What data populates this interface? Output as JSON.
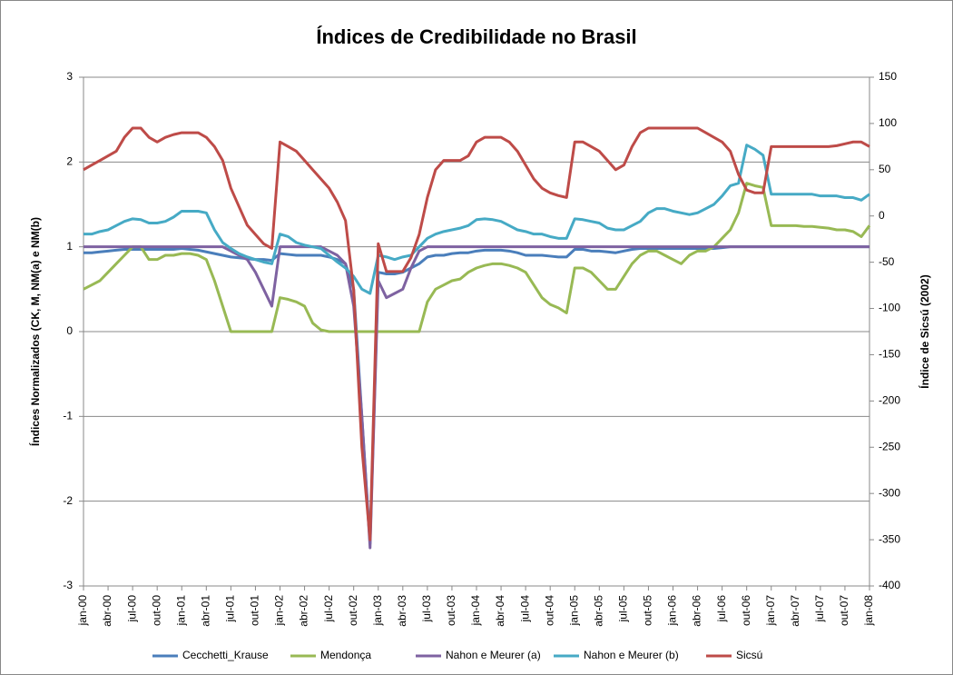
{
  "chart_data": {
    "type": "line",
    "title": "Índices de Credibilidade no Brasil",
    "y_label": "Índices Normalizados (CK, M, NM(a) e NM(b)",
    "y2_label": "Índice de Sicsú  (2002)",
    "categories": [
      "jan-00",
      null,
      null,
      "abr-00",
      null,
      null,
      "jul-00",
      null,
      null,
      "out-00",
      null,
      null,
      "jan-01",
      null,
      null,
      "abr-01",
      null,
      null,
      "jul-01",
      null,
      null,
      "out-01",
      null,
      null,
      "jan-02",
      null,
      null,
      "abr-02",
      null,
      null,
      "jul-02",
      null,
      null,
      "out-02",
      null,
      null,
      "jan-03",
      null,
      null,
      "abr-03",
      null,
      null,
      "jul-03",
      null,
      null,
      "out-03",
      null,
      null,
      "jan-04",
      null,
      null,
      "abr-04",
      null,
      null,
      "jul-04",
      null,
      null,
      "out-04",
      null,
      null,
      "jan-05",
      null,
      null,
      "abr-05",
      null,
      null,
      "jul-05",
      null,
      null,
      "out-05",
      null,
      null,
      "jan-06",
      null,
      null,
      "abr-06",
      null,
      null,
      "jul-06",
      null,
      null,
      "out-06",
      null,
      null,
      "jan-07",
      null,
      null,
      "abr-07",
      null,
      null,
      "jul-07",
      null,
      null,
      "out-07",
      null,
      null,
      "jan-08"
    ],
    "ylim": [
      -3,
      3
    ],
    "yticks": [
      -3,
      -2,
      -1,
      0,
      1,
      2,
      3
    ],
    "y2lim": [
      -400,
      150
    ],
    "y2ticks": [
      -400,
      -350,
      -300,
      -250,
      -200,
      -150,
      -100,
      -50,
      0,
      50,
      100,
      150
    ],
    "grid": true,
    "legend": "bottom",
    "series": [
      {
        "name": "Cecchetti_Krause",
        "color": "#4a7ebb",
        "values": [
          0.93,
          0.93,
          0.94,
          0.95,
          0.96,
          0.97,
          0.97,
          0.97,
          0.97,
          0.97,
          0.97,
          0.97,
          0.98,
          0.97,
          0.96,
          0.94,
          0.92,
          0.9,
          0.88,
          0.87,
          0.86,
          0.85,
          0.85,
          0.84,
          0.92,
          0.91,
          0.9,
          0.9,
          0.9,
          0.9,
          0.88,
          0.85,
          0.8,
          0.5,
          -1.0,
          -2.5,
          0.7,
          0.68,
          0.68,
          0.7,
          0.75,
          0.8,
          0.88,
          0.9,
          0.9,
          0.92,
          0.93,
          0.93,
          0.95,
          0.96,
          0.96,
          0.96,
          0.95,
          0.93,
          0.9,
          0.9,
          0.9,
          0.89,
          0.88,
          0.88,
          0.97,
          0.97,
          0.95,
          0.95,
          0.94,
          0.93,
          0.95,
          0.97,
          0.98,
          0.98,
          0.98,
          0.98,
          0.98,
          0.98,
          0.98,
          0.98,
          0.98,
          0.98,
          0.99,
          1.0,
          1.0,
          1.0,
          1.0,
          1.0,
          1.0,
          1.0,
          1.0,
          1.0,
          1.0,
          1.0,
          1.0,
          1.0,
          1.0,
          1.0,
          1.0,
          1.0,
          1.0
        ]
      },
      {
        "name": "Mendonça",
        "color": "#98b954",
        "values": [
          0.5,
          0.55,
          0.6,
          0.7,
          0.8,
          0.9,
          1.0,
          1.0,
          0.85,
          0.85,
          0.9,
          0.9,
          0.92,
          0.92,
          0.9,
          0.85,
          0.6,
          0.3,
          0,
          0,
          0,
          0,
          0,
          0,
          0.4,
          0.38,
          0.35,
          0.3,
          0.1,
          0.02,
          0,
          0,
          0,
          0,
          0,
          0,
          0,
          0,
          0,
          0,
          0,
          0,
          0.35,
          0.5,
          0.55,
          0.6,
          0.62,
          0.7,
          0.75,
          0.78,
          0.8,
          0.8,
          0.78,
          0.75,
          0.7,
          0.55,
          0.4,
          0.32,
          0.28,
          0.22,
          0.75,
          0.75,
          0.7,
          0.6,
          0.5,
          0.5,
          0.65,
          0.8,
          0.9,
          0.95,
          0.95,
          0.9,
          0.85,
          0.8,
          0.9,
          0.95,
          0.95,
          1.0,
          1.1,
          1.2,
          1.4,
          1.75,
          1.72,
          1.7,
          1.25,
          1.25,
          1.25,
          1.25,
          1.24,
          1.24,
          1.23,
          1.22,
          1.2,
          1.2,
          1.18,
          1.12,
          1.25
        ]
      },
      {
        "name": "Nahon e Meurer (a)",
        "color": "#7e62a1",
        "values": [
          1.0,
          1.0,
          1.0,
          1.0,
          1.0,
          1.0,
          1.0,
          1.0,
          1.0,
          1.0,
          1.0,
          1.0,
          1.0,
          1.0,
          1.0,
          1.0,
          1.0,
          1.0,
          0.95,
          0.9,
          0.85,
          0.7,
          0.5,
          0.3,
          1.0,
          1.0,
          1.0,
          1.0,
          1.0,
          1.0,
          0.95,
          0.9,
          0.8,
          0.3,
          -1.0,
          -2.55,
          0.6,
          0.4,
          0.45,
          0.5,
          0.75,
          0.95,
          1.0,
          1.0,
          1.0,
          1.0,
          1.0,
          1.0,
          1.0,
          1.0,
          1.0,
          1.0,
          1.0,
          1.0,
          1.0,
          1.0,
          1.0,
          1.0,
          1.0,
          1.0,
          1.0,
          1.0,
          1.0,
          1.0,
          1.0,
          1.0,
          1.0,
          1.0,
          1.0,
          1.0,
          1.0,
          1.0,
          1.0,
          1.0,
          1.0,
          1.0,
          1.0,
          1.0,
          1.0,
          1.0,
          1.0,
          1.0,
          1.0,
          1.0,
          1.0,
          1.0,
          1.0,
          1.0,
          1.0,
          1.0,
          1.0,
          1.0,
          1.0,
          1.0,
          1.0,
          1.0,
          1.0
        ]
      },
      {
        "name": "Nahon e Meurer (b)",
        "color": "#46aac5",
        "values": [
          1.15,
          1.15,
          1.18,
          1.2,
          1.25,
          1.3,
          1.33,
          1.32,
          1.28,
          1.28,
          1.3,
          1.35,
          1.42,
          1.42,
          1.42,
          1.4,
          1.2,
          1.05,
          0.98,
          0.92,
          0.88,
          0.85,
          0.82,
          0.8,
          1.15,
          1.12,
          1.05,
          1.02,
          1.0,
          0.98,
          0.9,
          0.82,
          0.75,
          0.65,
          0.5,
          0.45,
          0.9,
          0.88,
          0.85,
          0.88,
          0.9,
          1.0,
          1.1,
          1.15,
          1.18,
          1.2,
          1.22,
          1.25,
          1.32,
          1.33,
          1.32,
          1.3,
          1.25,
          1.2,
          1.18,
          1.15,
          1.15,
          1.12,
          1.1,
          1.1,
          1.33,
          1.32,
          1.3,
          1.28,
          1.22,
          1.2,
          1.2,
          1.25,
          1.3,
          1.4,
          1.45,
          1.45,
          1.42,
          1.4,
          1.38,
          1.4,
          1.45,
          1.5,
          1.6,
          1.72,
          1.75,
          2.2,
          2.15,
          2.08,
          1.62,
          1.62,
          1.62,
          1.62,
          1.62,
          1.62,
          1.6,
          1.6,
          1.6,
          1.58,
          1.58,
          1.55,
          1.62
        ]
      },
      {
        "name": "Sicsú",
        "color": "#be4b48",
        "axis": "y2",
        "values": [
          50,
          55,
          60,
          65,
          70,
          85,
          95,
          95,
          85,
          80,
          85,
          88,
          90,
          90,
          90,
          85,
          75,
          60,
          30,
          10,
          -10,
          -20,
          -30,
          -35,
          80,
          75,
          70,
          60,
          50,
          40,
          30,
          15,
          -5,
          -80,
          -250,
          -350,
          -30,
          -60,
          -60,
          -60,
          -45,
          -20,
          20,
          50,
          60,
          60,
          60,
          65,
          80,
          85,
          85,
          85,
          80,
          70,
          55,
          40,
          30,
          25,
          22,
          20,
          80,
          80,
          75,
          70,
          60,
          50,
          55,
          75,
          90,
          95,
          95,
          95,
          95,
          95,
          95,
          95,
          90,
          85,
          80,
          70,
          45,
          28,
          25,
          25,
          75,
          75,
          75,
          75,
          75,
          75,
          75,
          75,
          76,
          78,
          80,
          80,
          75
        ]
      }
    ]
  }
}
